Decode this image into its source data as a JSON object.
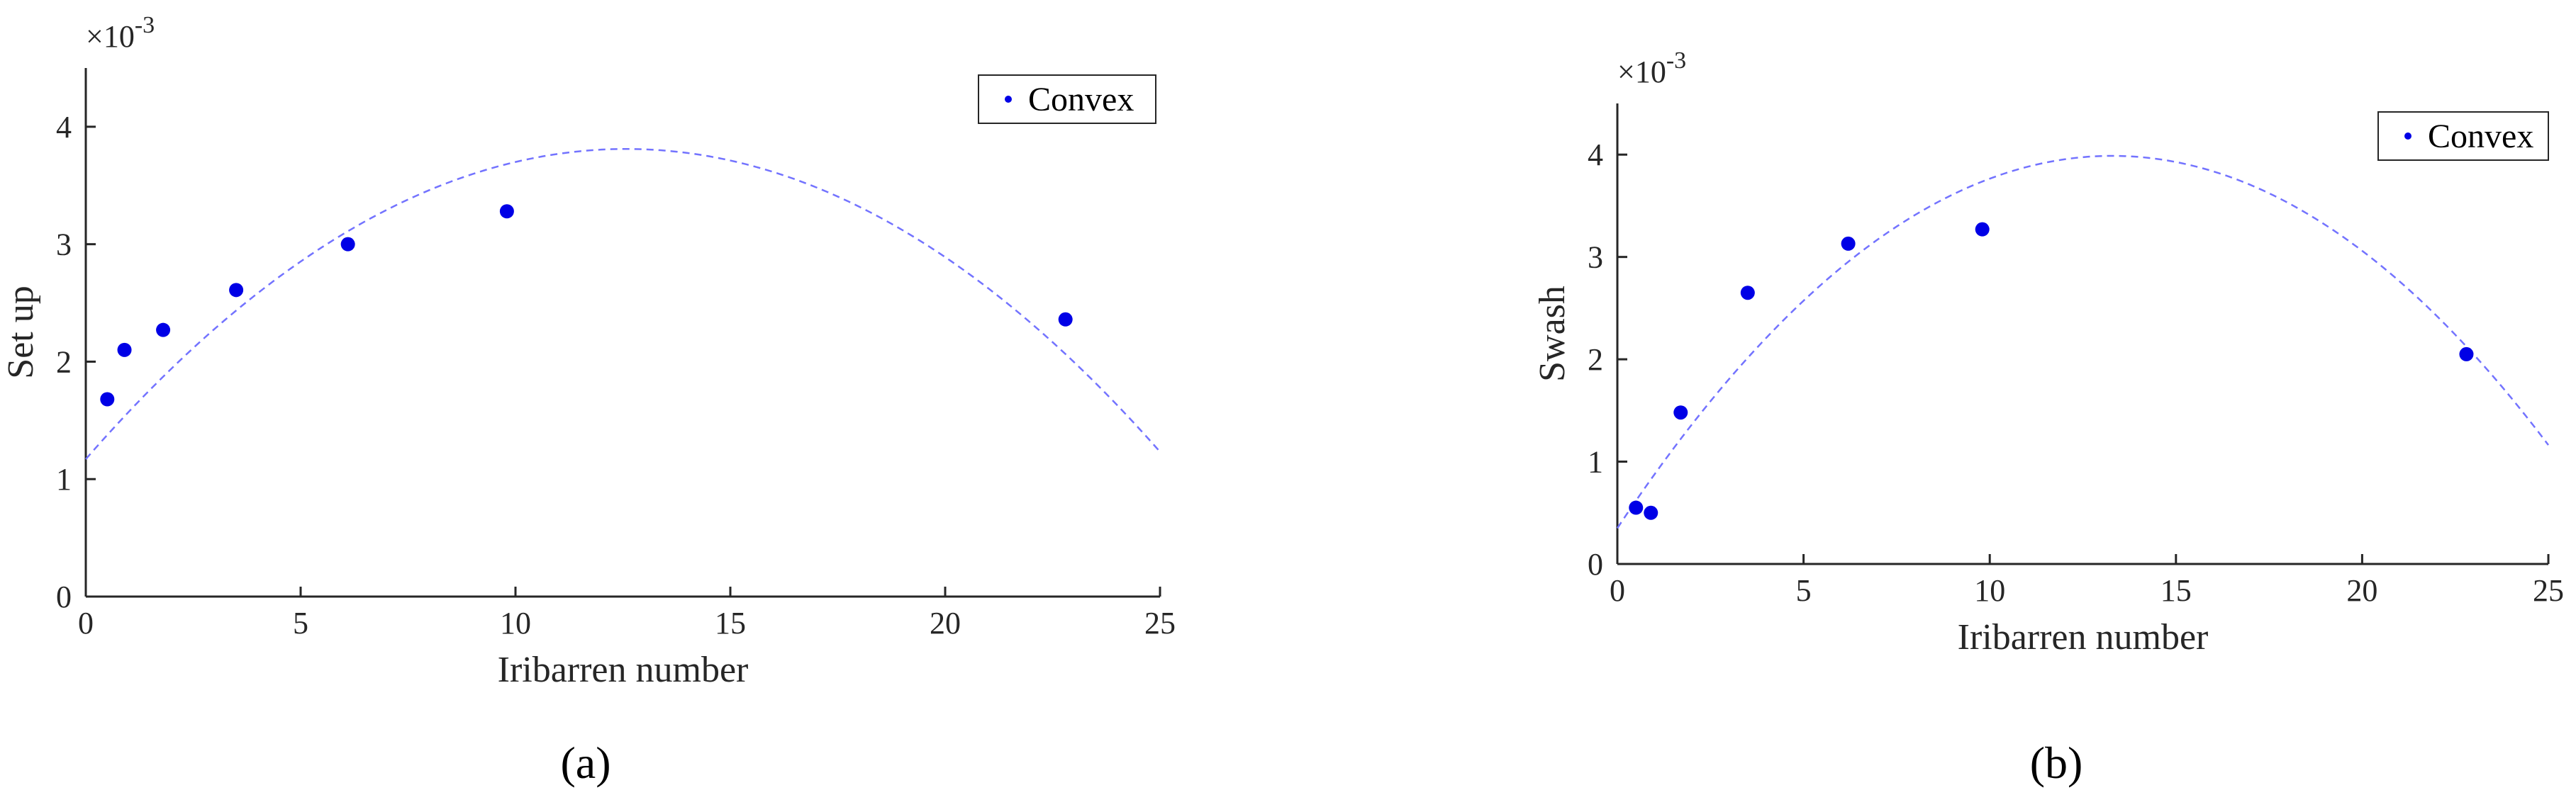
{
  "chart_data": [
    {
      "type": "scatter",
      "panel_label": "(a)",
      "xlabel": "Iribarren number",
      "ylabel": "Set up",
      "exponent_label": "×10",
      "exponent_power": "-3",
      "xlim": [
        0,
        25
      ],
      "ylim": [
        0,
        4.5
      ],
      "xticks": [
        0,
        5,
        10,
        15,
        20,
        25
      ],
      "yticks": [
        0,
        1,
        2,
        3,
        4
      ],
      "legend": {
        "label": "Convex",
        "placement": "top-right"
      },
      "series": [
        {
          "name": "Convex",
          "x": [
            0.5,
            0.9,
            1.8,
            3.5,
            6.1,
            9.8,
            22.8
          ],
          "y": [
            1.68,
            2.1,
            2.27,
            2.61,
            3.0,
            3.28,
            2.36
          ]
        }
      ],
      "fit": {
        "style": "dashed",
        "coefficients": [
          1.17,
          0.42,
          -0.0167
        ]
      },
      "colors": {
        "marker": "#0000e6",
        "fit": "#7373ff"
      }
    },
    {
      "type": "scatter",
      "panel_label": "(b)",
      "xlabel": "Iribarren number",
      "ylabel": "Swash",
      "exponent_label": "×10",
      "exponent_power": "-3",
      "xlim": [
        0,
        25
      ],
      "ylim": [
        0,
        4.5
      ],
      "xticks": [
        0,
        5,
        10,
        15,
        20,
        25
      ],
      "yticks": [
        0,
        1,
        2,
        3,
        4
      ],
      "legend": {
        "label": "Convex",
        "placement": "top-right"
      },
      "series": [
        {
          "name": "Convex",
          "x": [
            0.5,
            0.9,
            1.7,
            3.5,
            6.2,
            9.8,
            22.8
          ],
          "y": [
            0.55,
            0.5,
            1.48,
            2.65,
            3.13,
            3.27,
            2.05
          ]
        }
      ],
      "fit": {
        "style": "dashed",
        "coefficients": [
          0.35,
          0.5475,
          -0.0206
        ]
      },
      "colors": {
        "marker": "#0000e6",
        "fit": "#7373ff"
      }
    }
  ]
}
